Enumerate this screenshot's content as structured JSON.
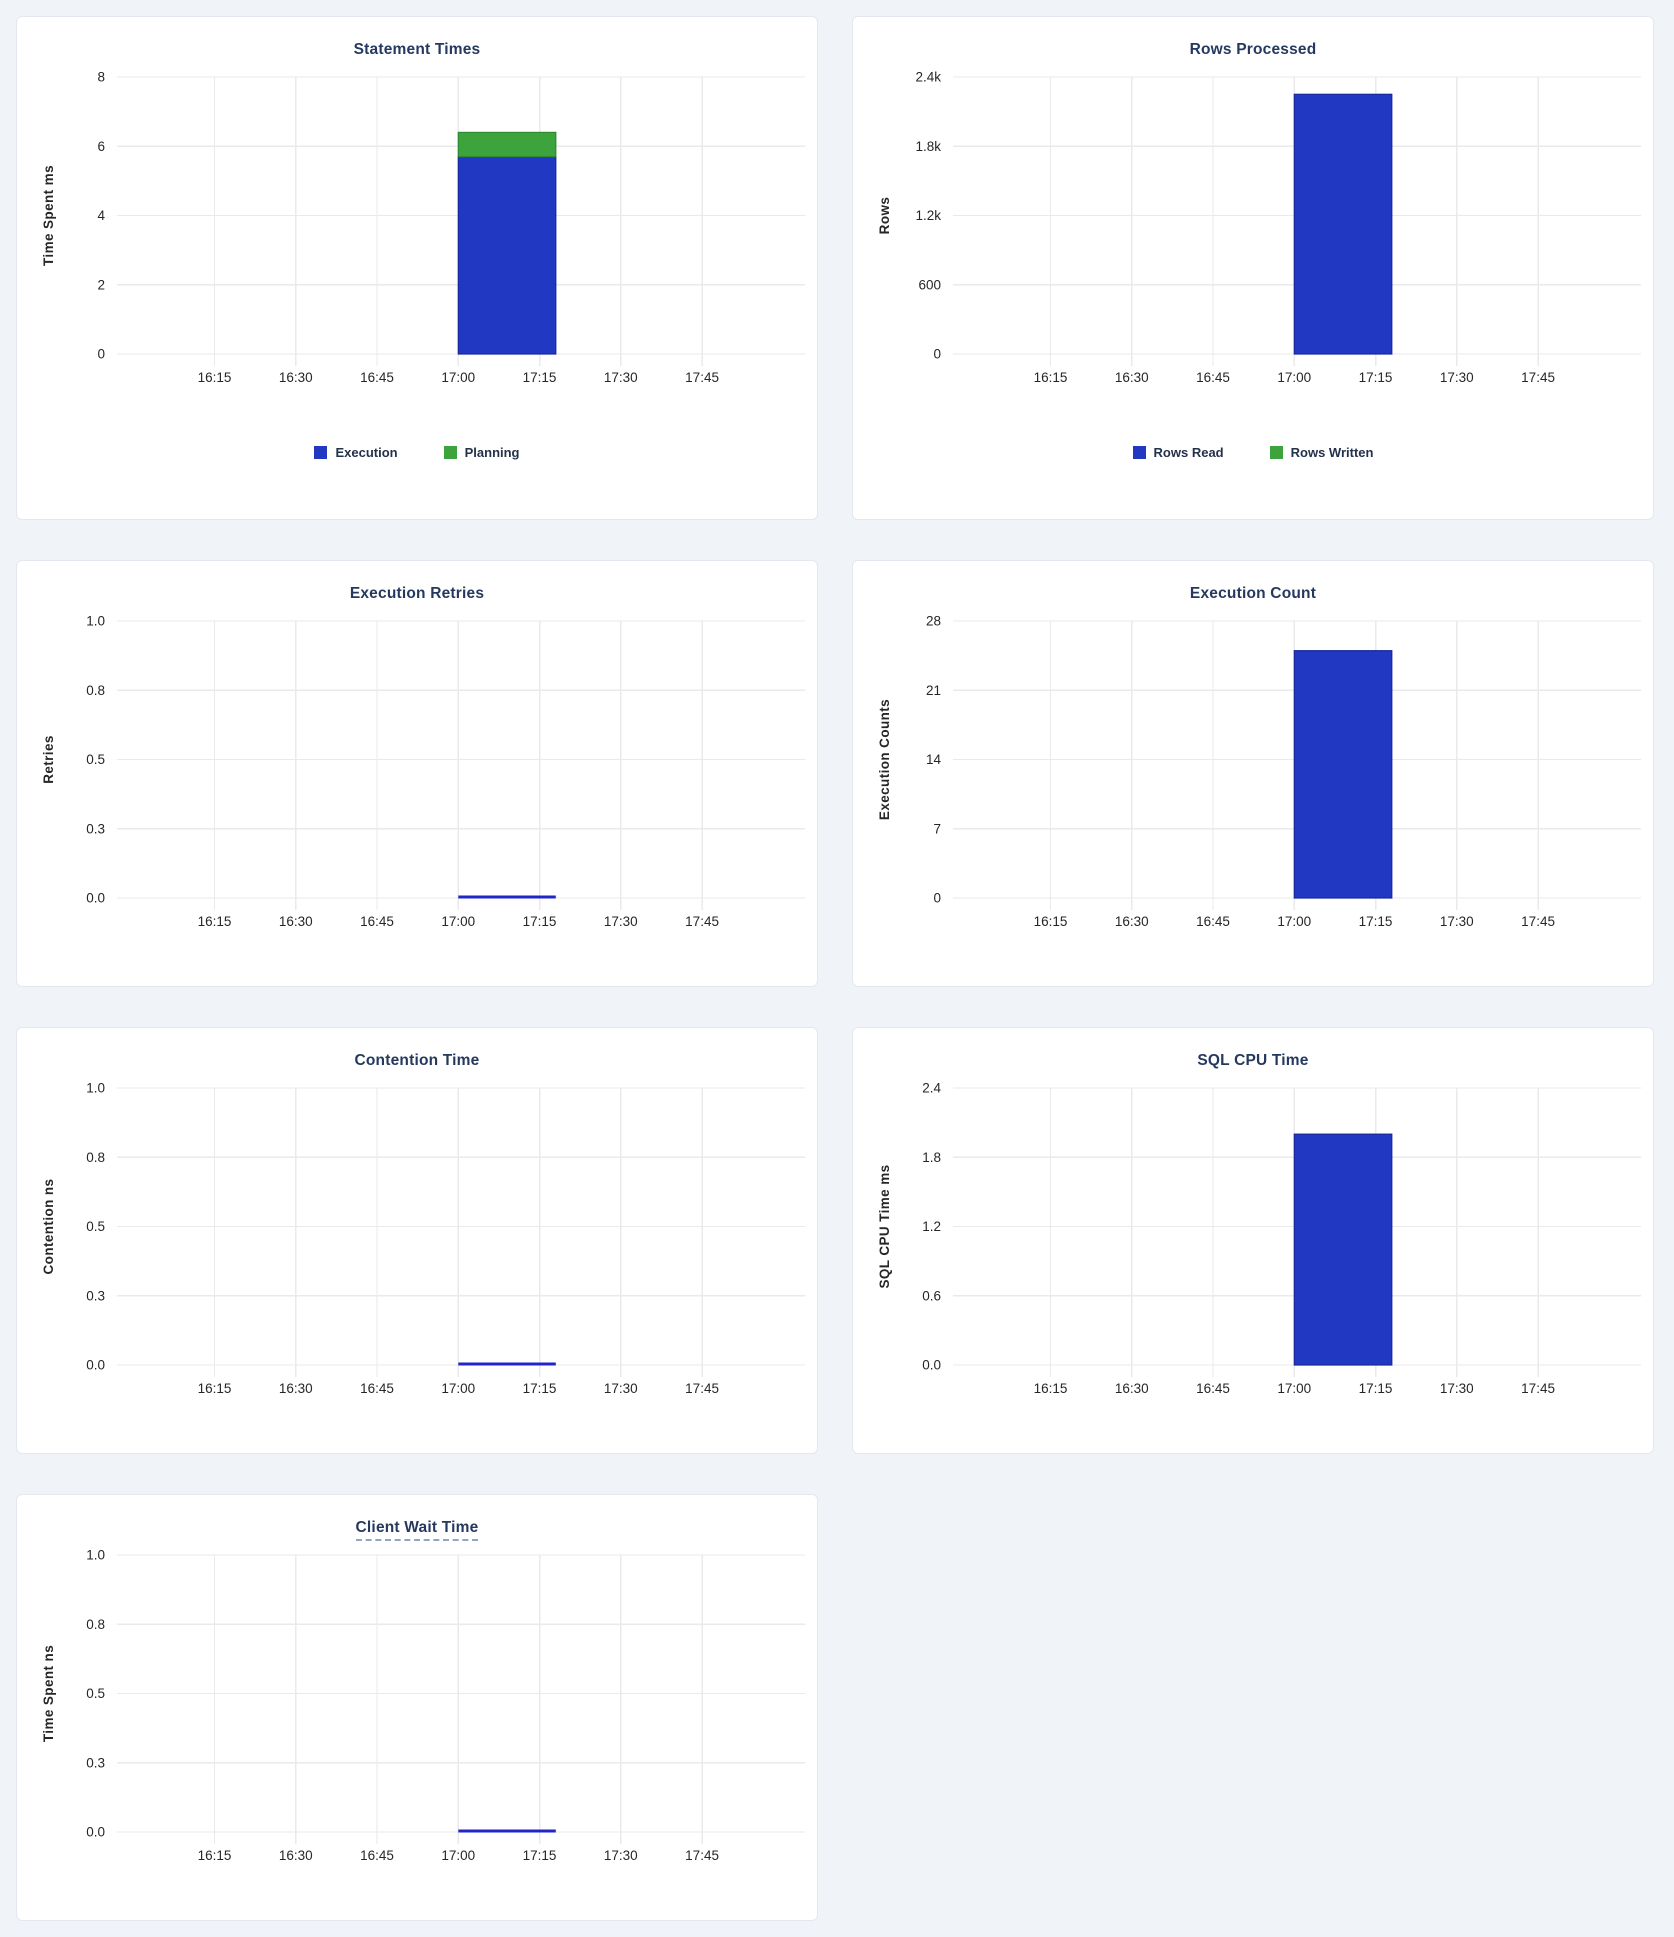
{
  "page": {
    "background": "#f0f4f8",
    "card_background": "#ffffff"
  },
  "colors": {
    "blue": "#2139c2",
    "green": "#3da33c",
    "blue_stroke": "#18289c",
    "green_stroke": "#2f8a2f",
    "zero_line": "#2026c8",
    "title": "#25395f",
    "grid": "#eaeaea",
    "tick_label": "#262626"
  },
  "time_axis": {
    "tick_labels": [
      "16:15",
      "16:30",
      "16:45",
      "17:00",
      "17:15",
      "17:30",
      "17:45"
    ],
    "tick_minutes": [
      15,
      30,
      45,
      60,
      75,
      90,
      105
    ]
  },
  "chart_data": [
    {
      "type": "bar",
      "title": "Statement Times",
      "ylabel": "Time Spent ms",
      "ytick_labels": [
        "8",
        "6",
        "4",
        "2",
        "0"
      ],
      "ymax": 8,
      "ylim": [
        0,
        8
      ],
      "legend": [
        {
          "label": "Execution",
          "color": "blue"
        },
        {
          "label": "Planning",
          "color": "green"
        }
      ],
      "bars": [
        {
          "series": "Execution",
          "color": "blue",
          "value": 5.7,
          "start_min": 60,
          "end_min": 78,
          "x_start": "17:00",
          "x_end": "17:18"
        },
        {
          "series": "Planning",
          "color": "green",
          "value": 0.7,
          "start_min": 60,
          "end_min": 78,
          "x_start": "17:00",
          "x_end": "17:18"
        }
      ],
      "zero_line": null
    },
    {
      "type": "bar",
      "title": "Rows Processed",
      "ylabel": "Rows",
      "ytick_labels": [
        "2.4k",
        "1.8k",
        "1.2k",
        "600",
        "0"
      ],
      "ymax": 2400,
      "ylim": [
        0,
        2400
      ],
      "legend": [
        {
          "label": "Rows Read",
          "color": "blue"
        },
        {
          "label": "Rows Written",
          "color": "green"
        }
      ],
      "bars": [
        {
          "series": "Rows Read",
          "color": "blue",
          "value": 2250,
          "start_min": 60,
          "end_min": 78,
          "x_start": "17:00",
          "x_end": "17:18"
        },
        {
          "series": "Rows Written",
          "color": "green",
          "value": 0,
          "start_min": 60,
          "end_min": 78,
          "x_start": "17:00",
          "x_end": "17:18"
        }
      ],
      "zero_line": null
    },
    {
      "type": "bar",
      "title": "Execution Retries",
      "ylabel": "Retries",
      "ytick_labels": [
        "1.0",
        "0.8",
        "0.5",
        "0.3",
        "0.0"
      ],
      "ymax": 1,
      "ylim": [
        0,
        1
      ],
      "legend": null,
      "bars": [],
      "zero_line": {
        "series": "Retries",
        "value": 0,
        "start_min": 60,
        "end_min": 78,
        "x_start": "17:00",
        "x_end": "17:18"
      }
    },
    {
      "type": "bar",
      "title": "Execution Count",
      "ylabel": "Execution Counts",
      "ytick_labels": [
        "28",
        "21",
        "14",
        "7",
        "0"
      ],
      "ymax": 28,
      "ylim": [
        0,
        28
      ],
      "legend": null,
      "bars": [
        {
          "series": "Execution Count",
          "color": "blue",
          "value": 25,
          "start_min": 60,
          "end_min": 78,
          "x_start": "17:00",
          "x_end": "17:18"
        }
      ],
      "zero_line": null
    },
    {
      "type": "bar",
      "title": "Contention Time",
      "ylabel": "Contention ns",
      "ytick_labels": [
        "1.0",
        "0.8",
        "0.5",
        "0.3",
        "0.0"
      ],
      "ymax": 1,
      "ylim": [
        0,
        1
      ],
      "legend": null,
      "bars": [],
      "zero_line": {
        "series": "Contention",
        "value": 0,
        "start_min": 60,
        "end_min": 78,
        "x_start": "17:00",
        "x_end": "17:18"
      }
    },
    {
      "type": "bar",
      "title": "SQL CPU Time",
      "ylabel": "SQL CPU Time ms",
      "ytick_labels": [
        "2.4",
        "1.8",
        "1.2",
        "0.6",
        "0.0"
      ],
      "ymax": 2.4,
      "ylim": [
        0,
        2.4
      ],
      "legend": null,
      "bars": [
        {
          "series": "SQL CPU Time",
          "color": "blue",
          "value": 2.0,
          "start_min": 60,
          "end_min": 78,
          "x_start": "17:00",
          "x_end": "17:18"
        }
      ],
      "zero_line": null
    },
    {
      "type": "bar",
      "title": "Client Wait Time",
      "title_underline": true,
      "ylabel": "Time Spent ns",
      "ytick_labels": [
        "1.0",
        "0.8",
        "0.5",
        "0.3",
        "0.0"
      ],
      "ymax": 1,
      "ylim": [
        0,
        1
      ],
      "legend": null,
      "bars": [],
      "zero_line": {
        "series": "Client Wait",
        "value": 0,
        "start_min": 60,
        "end_min": 78,
        "x_start": "17:00",
        "x_end": "17:18"
      }
    }
  ]
}
